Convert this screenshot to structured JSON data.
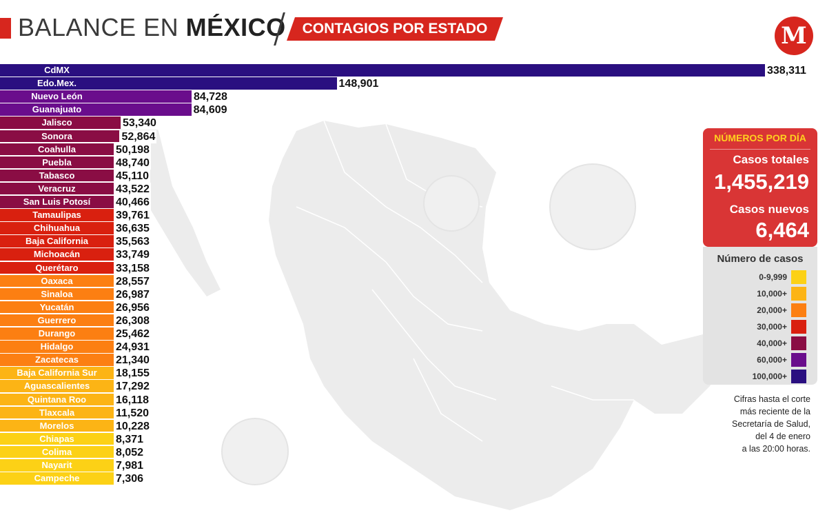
{
  "header": {
    "title_light": "BALANCE EN ",
    "title_bold": "MÉXICO",
    "tag": "CONTAGIOS POR ESTADO",
    "logo": "M"
  },
  "chart_data": {
    "type": "bar",
    "orientation": "horizontal",
    "categories": [
      "CdMX",
      "Edo.Mex.",
      "Nuevo León",
      "Guanajuato",
      "Jalisco",
      "Sonora",
      "Coahulla",
      "Puebla",
      "Tabasco",
      "Veracruz",
      "San Luis Potosí",
      "Tamaulipas",
      "Chihuahua",
      "Baja California",
      "Michoacán",
      "Querétaro",
      "Oaxaca",
      "Sinaloa",
      "Yucatán",
      "Guerrero",
      "Durango",
      "Hidalgo",
      "Zacatecas",
      "Baja California Sur",
      "Aguascalientes",
      "Quintana Roo",
      "Tlaxcala",
      "Morelos",
      "Chiapas",
      "Colima",
      "Nayarit",
      "Campeche"
    ],
    "values": [
      338311,
      148901,
      84728,
      84609,
      53340,
      52864,
      50198,
      48740,
      45110,
      43522,
      40466,
      39761,
      36635,
      35563,
      33749,
      33158,
      28557,
      26987,
      26956,
      26308,
      25462,
      24931,
      21340,
      18155,
      17292,
      16118,
      11520,
      10228,
      8371,
      8052,
      7981,
      7306
    ],
    "value_labels": [
      "338,311",
      "148,901",
      "84,728",
      "84,609",
      "53,340",
      "52,864",
      "50,198",
      "48,740",
      "45,110",
      "43,522",
      "40,466",
      "39,761",
      "36,635",
      "35,563",
      "33,749",
      "33,158",
      "28,557",
      "26,987",
      "26,956",
      "26,308",
      "25,462",
      "24,931",
      "21,340",
      "18,155",
      "17,292",
      "16,118",
      "11,520",
      "10,228",
      "8,371",
      "8,052",
      "7,981",
      "7,306"
    ],
    "ylim": [
      0,
      338311
    ],
    "color_scale": [
      {
        "min": 0,
        "color": "#fcd116"
      },
      {
        "min": 10000,
        "color": "#fcb415"
      },
      {
        "min": 20000,
        "color": "#fc7f12"
      },
      {
        "min": 30000,
        "color": "#d9200f"
      },
      {
        "min": 40000,
        "color": "#8a0d44"
      },
      {
        "min": 60000,
        "color": "#6a0d8c"
      },
      {
        "min": 100000,
        "color": "#2a0f80"
      }
    ]
  },
  "panel": {
    "heading": "NÚMEROS POR DÍA",
    "total_label": "Casos totales",
    "total_value": "1,455,219",
    "new_label": "Casos nuevos",
    "new_value": "6,464",
    "legend_title": "Número de casos",
    "legend": [
      {
        "label": "0-9,999",
        "color": "#fcd116"
      },
      {
        "label": "10,000+",
        "color": "#fcb415"
      },
      {
        "label": "20,000+",
        "color": "#fc7f12"
      },
      {
        "label": "30,000+",
        "color": "#d9200f"
      },
      {
        "label": "40,000+",
        "color": "#8a0d44"
      },
      {
        "label": "60,000+",
        "color": "#6a0d8c"
      },
      {
        "label": "100,000+",
        "color": "#2a0f80"
      }
    ]
  },
  "note": [
    "Cifras hasta el corte",
    "más reciente de la",
    "Secretaría de Salud,",
    "del 4 de enero",
    "a las 20:00 horas."
  ]
}
